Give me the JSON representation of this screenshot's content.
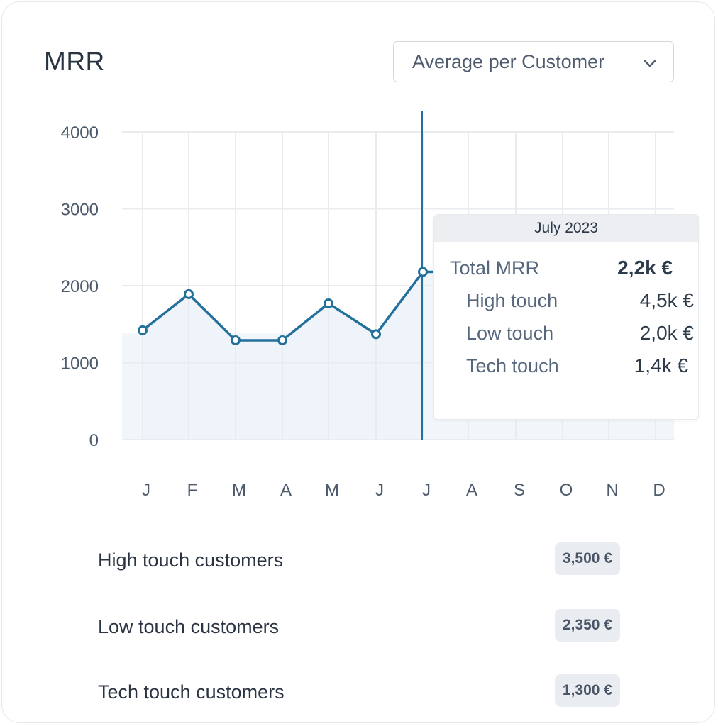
{
  "title": "MRR",
  "dropdown": {
    "label": "Average per Customer",
    "icon": "chevron-down-icon"
  },
  "colors": {
    "line": "#23709c",
    "area": "#eaf2f8",
    "grid": "#e9ecef",
    "text": "#2d3a4a"
  },
  "chart_data": {
    "type": "line",
    "categories": [
      "J",
      "F",
      "M",
      "A",
      "M",
      "J",
      "J",
      "A",
      "S",
      "O",
      "N",
      "D"
    ],
    "series": [
      {
        "values": [
          1420,
          1890,
          1290,
          1290,
          1770,
          1370,
          2180,
          null,
          null,
          null,
          null,
          null
        ]
      }
    ],
    "ylim": [
      0,
      4000
    ],
    "yticks": [
      "0",
      "1000",
      "2000",
      "3000",
      "4000"
    ],
    "grid": true,
    "highlight_index": 6
  },
  "tooltip": {
    "header": "July 2023",
    "total_label": "Total MRR",
    "total_value": "2,2k €",
    "rows": [
      {
        "label": "High touch",
        "value": "4,5k €"
      },
      {
        "label": "Low touch",
        "value": "2,0k €"
      },
      {
        "label": "Tech touch",
        "value": "1,4k €"
      }
    ]
  },
  "segments": [
    {
      "label": "High touch customers",
      "value": "3,500 €"
    },
    {
      "label": "Low touch customers",
      "value": "2,350 €"
    },
    {
      "label": "Tech touch customers",
      "value": "1,300 €"
    }
  ]
}
